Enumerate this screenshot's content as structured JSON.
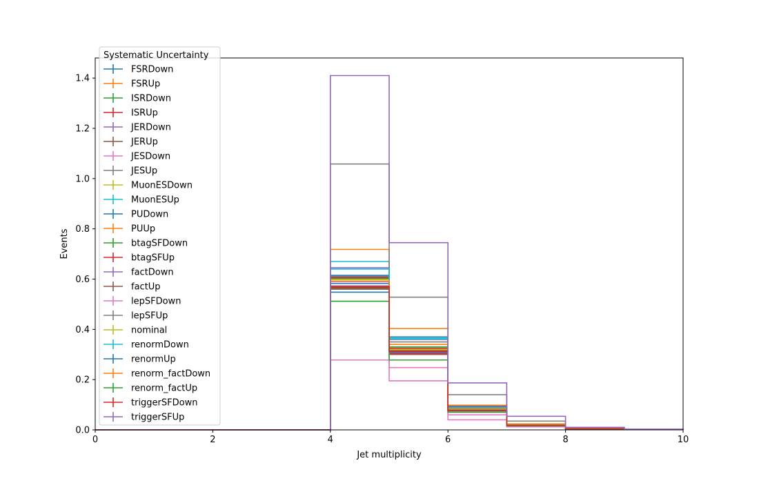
{
  "chart_data": {
    "type": "line",
    "title": "",
    "xlabel": "Jet multiplicity",
    "ylabel": "Events",
    "xlim": [
      0,
      10
    ],
    "ylim": [
      0,
      1.48
    ],
    "xticks": [
      "0",
      "2",
      "4",
      "6",
      "8",
      "10"
    ],
    "yticks": [
      "0.0",
      "0.2",
      "0.4",
      "0.6",
      "0.8",
      "1.0",
      "1.2",
      "1.4"
    ],
    "bin_edges": [
      0,
      1,
      2,
      3,
      4,
      5,
      6,
      7,
      8,
      9,
      10
    ],
    "legend_title": "Systematic Uncertainty",
    "legend_position": "upper-left",
    "grid": false,
    "series": [
      {
        "name": "FSRDown",
        "color": "#1f77b4",
        "values": [
          0,
          0,
          0,
          0,
          0.548,
          0.303,
          0.075,
          0.017,
          0.004,
          0.001
        ]
      },
      {
        "name": "FSRUp",
        "color": "#ff7f0e",
        "values": [
          0,
          0,
          0,
          0,
          0.565,
          0.305,
          0.078,
          0.018,
          0.004,
          0.001
        ]
      },
      {
        "name": "ISRDown",
        "color": "#2ca02c",
        "values": [
          0,
          0,
          0,
          0,
          0.563,
          0.301,
          0.075,
          0.017,
          0.004,
          0.001
        ]
      },
      {
        "name": "ISRUp",
        "color": "#d62728",
        "values": [
          0,
          0,
          0,
          0,
          0.567,
          0.304,
          0.077,
          0.018,
          0.004,
          0.001
        ]
      },
      {
        "name": "JERDown",
        "color": "#9467bd",
        "values": [
          0,
          0,
          0,
          0,
          0.573,
          0.308,
          0.078,
          0.018,
          0.004,
          0.001
        ]
      },
      {
        "name": "JERUp",
        "color": "#8c564b",
        "values": [
          0,
          0,
          0,
          0,
          0.56,
          0.3,
          0.075,
          0.017,
          0.004,
          0.001
        ]
      },
      {
        "name": "JESDown",
        "color": "#e377c2",
        "values": [
          0,
          0,
          0,
          0,
          0.59,
          0.248,
          0.06,
          0.014,
          0.003,
          0.001
        ]
      },
      {
        "name": "JESUp",
        "color": "#7f7f7f",
        "values": [
          0,
          0,
          0,
          0,
          0.61,
          0.35,
          0.09,
          0.021,
          0.005,
          0.001
        ]
      },
      {
        "name": "MuonESDown",
        "color": "#bcbd22",
        "values": [
          0,
          0,
          0,
          0,
          0.6,
          0.318,
          0.08,
          0.019,
          0.004,
          0.001
        ]
      },
      {
        "name": "MuonESUp",
        "color": "#17becf",
        "values": [
          0,
          0,
          0,
          0,
          0.67,
          0.365,
          0.092,
          0.022,
          0.005,
          0.001
        ]
      },
      {
        "name": "PUDown",
        "color": "#1f77b4",
        "values": [
          0,
          0,
          0,
          0,
          0.615,
          0.37,
          0.095,
          0.022,
          0.005,
          0.001
        ]
      },
      {
        "name": "PUUp",
        "color": "#ff7f0e",
        "values": [
          0,
          0,
          0,
          0,
          0.718,
          0.403,
          0.098,
          0.024,
          0.006,
          0.001
        ]
      },
      {
        "name": "btagSFDown",
        "color": "#2ca02c",
        "values": [
          0,
          0,
          0,
          0,
          0.603,
          0.33,
          0.082,
          0.019,
          0.005,
          0.001
        ]
      },
      {
        "name": "btagSFUp",
        "color": "#d62728",
        "values": [
          0,
          0,
          0,
          0,
          0.607,
          0.325,
          0.08,
          0.019,
          0.004,
          0.001
        ]
      },
      {
        "name": "factDown",
        "color": "#9467bd",
        "values": [
          0,
          0,
          0,
          0,
          0.645,
          0.36,
          0.09,
          0.021,
          0.005,
          0.001
        ]
      },
      {
        "name": "factUp",
        "color": "#8c564b",
        "values": [
          0,
          0,
          0,
          0,
          0.605,
          0.315,
          0.078,
          0.018,
          0.004,
          0.001
        ]
      },
      {
        "name": "lepSFDown",
        "color": "#e377c2",
        "values": [
          0,
          0,
          0,
          0,
          0.278,
          0.195,
          0.04,
          0.012,
          0.003,
          0.001
        ]
      },
      {
        "name": "lepSFUp",
        "color": "#7f7f7f",
        "values": [
          0,
          0,
          0,
          0,
          1.058,
          0.528,
          0.14,
          0.035,
          0.008,
          0.002
        ]
      },
      {
        "name": "nominal",
        "color": "#bcbd22",
        "values": [
          0,
          0,
          0,
          0,
          0.598,
          0.32,
          0.08,
          0.019,
          0.004,
          0.001
        ]
      },
      {
        "name": "renormDown",
        "color": "#17becf",
        "values": [
          0,
          0,
          0,
          0,
          0.64,
          0.362,
          0.088,
          0.021,
          0.005,
          0.001
        ]
      },
      {
        "name": "renormUp",
        "color": "#1f77b4",
        "values": [
          0,
          0,
          0,
          0,
          0.583,
          0.31,
          0.078,
          0.018,
          0.004,
          0.001
        ]
      },
      {
        "name": "renorm_factDown",
        "color": "#ff7f0e",
        "values": [
          0,
          0,
          0,
          0,
          0.592,
          0.34,
          0.085,
          0.02,
          0.005,
          0.001
        ]
      },
      {
        "name": "renorm_factUp",
        "color": "#2ca02c",
        "values": [
          0,
          0,
          0,
          0,
          0.512,
          0.278,
          0.07,
          0.016,
          0.004,
          0.001
        ]
      },
      {
        "name": "triggerSFDown",
        "color": "#d62728",
        "values": [
          0,
          0,
          0,
          0,
          0.57,
          0.312,
          0.076,
          0.018,
          0.004,
          0.001
        ]
      },
      {
        "name": "triggerSFUp",
        "color": "#9467bd",
        "values": [
          0,
          0,
          0,
          0,
          1.41,
          0.745,
          0.187,
          0.054,
          0.01,
          0.003
        ]
      }
    ]
  }
}
